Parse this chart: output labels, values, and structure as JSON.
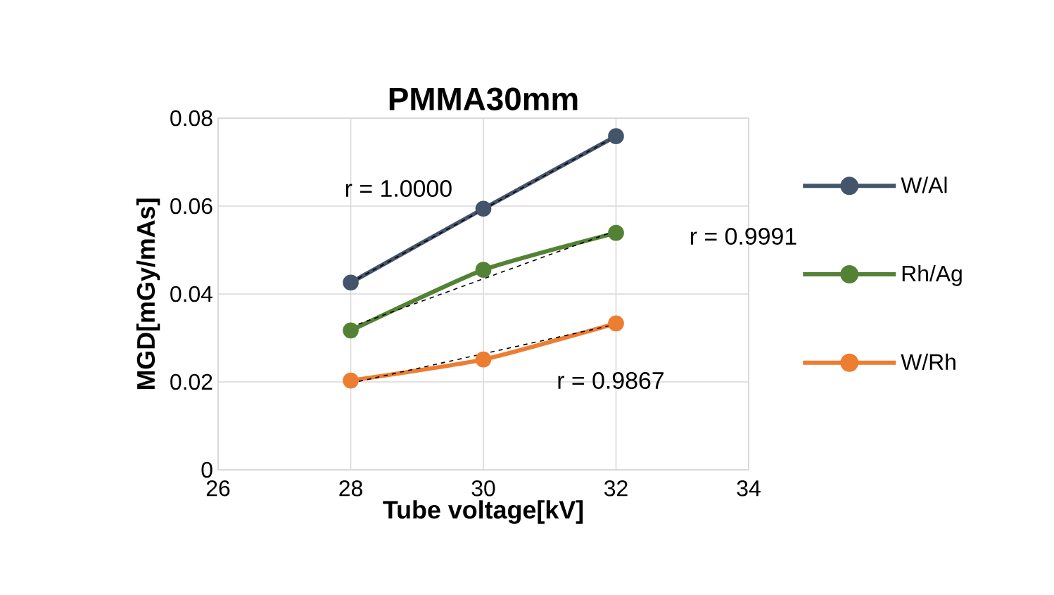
{
  "chart_data": {
    "type": "line",
    "title": "PMMA30mm",
    "xlabel": "Tube voltage[kV]",
    "ylabel": "MGD[mGy/mAs]",
    "xlim": [
      26,
      34
    ],
    "xticks": [
      26,
      28,
      30,
      32,
      34
    ],
    "ylim": [
      0,
      0.08
    ],
    "yticks": [
      {
        "value": 0,
        "label": "0"
      },
      {
        "value": 0.02,
        "label": "0.02"
      },
      {
        "value": 0.04,
        "label": "0.04"
      },
      {
        "value": 0.06,
        "label": "0.06"
      },
      {
        "value": 0.08,
        "label": "0.08"
      }
    ],
    "grid": true,
    "legend": "right",
    "marker": "circle",
    "line_style": "solid",
    "series": [
      {
        "name": "W/Al",
        "color": "#44546a",
        "x": [
          28,
          30,
          32
        ],
        "values": [
          0.0426,
          0.0594,
          0.0759
        ]
      },
      {
        "name": "Rh/Ag",
        "color": "#548235",
        "x": [
          28,
          30,
          32
        ],
        "values": [
          0.0317,
          0.0455,
          0.0539
        ]
      },
      {
        "name": "W/Rh",
        "color": "#ed7d31",
        "x": [
          28,
          30,
          32
        ],
        "values": [
          0.0203,
          0.0251,
          0.0333
        ]
      },
      {
        "type": "line",
        "color": "#000000",
        "marker": "none",
        "line_style": "dashed",
        "x": [
          28,
          32
        ],
        "values": [
          0.0426,
          0.0759
        ]
      },
      {
        "type": "line",
        "color": "#000000",
        "marker": "none",
        "line_style": "dashed",
        "x": [
          28,
          32
        ],
        "values": [
          0.0325,
          0.0544
        ]
      },
      {
        "type": "line",
        "color": "#000000",
        "marker": "none",
        "line_style": "dashed",
        "x": [
          28,
          32
        ],
        "values": [
          0.0197,
          0.0331
        ]
      }
    ],
    "annotations": [
      "r = 1.0000",
      "r = 0.9991",
      "r = 0.9867"
    ]
  }
}
